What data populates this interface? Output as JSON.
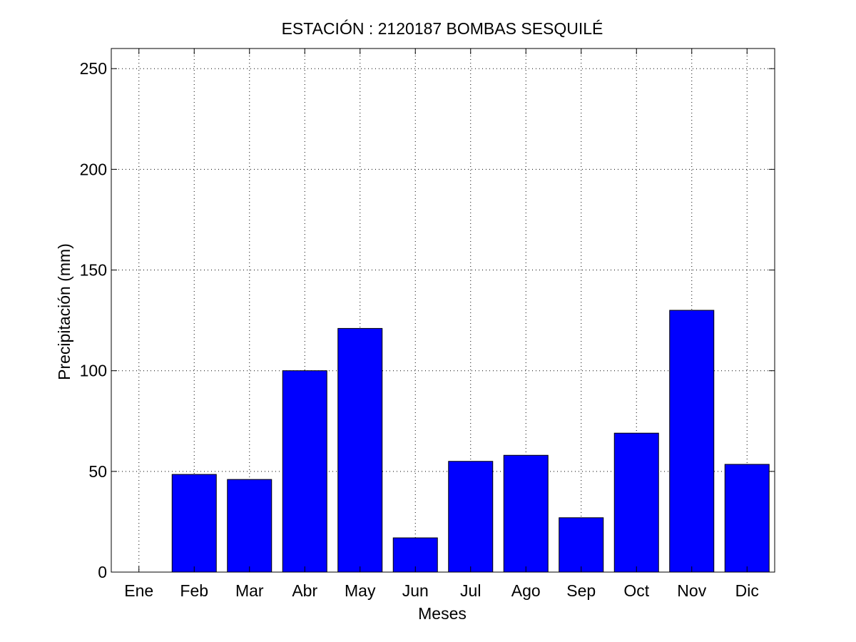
{
  "chart_data": {
    "type": "bar",
    "title": "ESTACIÓN :  2120187  BOMBAS SESQUILÉ",
    "xlabel": "Meses",
    "ylabel": "Precipitación (mm)",
    "categories": [
      "Ene",
      "Feb",
      "Mar",
      "Abr",
      "May",
      "Jun",
      "Jul",
      "Ago",
      "Sep",
      "Oct",
      "Nov",
      "Dic"
    ],
    "values": [
      0,
      48.5,
      46,
      100,
      121,
      17,
      55,
      58,
      27,
      69,
      130,
      53.5
    ],
    "ylim": [
      0,
      260
    ],
    "yticks": [
      "0",
      "50",
      "100",
      "150",
      "200",
      "250"
    ],
    "grid": true,
    "bar_color": "#0000ff"
  }
}
